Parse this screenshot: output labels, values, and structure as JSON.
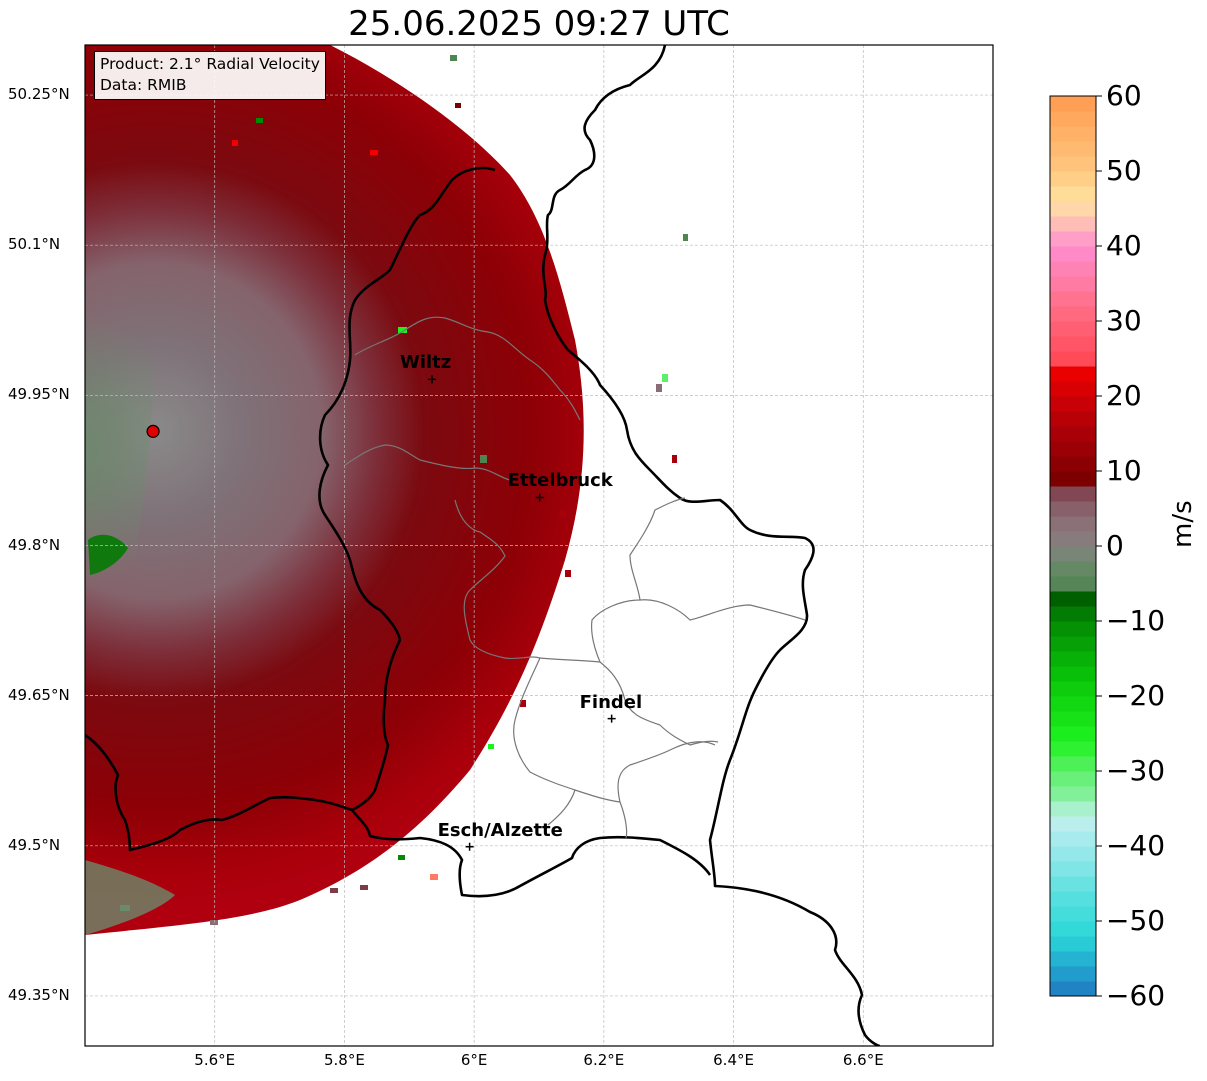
{
  "title": "25.06.2025 09:27 UTC",
  "info_box": {
    "product_line": "Product: 2.1° Radial Velocity",
    "data_line": "Data: RMIB"
  },
  "map": {
    "lon_range": [
      5.4,
      6.8
    ],
    "lat_range": [
      49.3,
      50.3
    ],
    "lat_ticks": [
      {
        "value": 50.25,
        "label": "50.25°N"
      },
      {
        "value": 50.1,
        "label": "50.1°N"
      },
      {
        "value": 49.95,
        "label": "49.95°N"
      },
      {
        "value": 49.8,
        "label": "49.8°N"
      },
      {
        "value": 49.65,
        "label": "49.65°N"
      },
      {
        "value": 49.5,
        "label": "49.5°N"
      },
      {
        "value": 49.35,
        "label": "49.35°N"
      }
    ],
    "lon_ticks": [
      {
        "value": 5.6,
        "label": "5.6°E"
      },
      {
        "value": 5.8,
        "label": "5.8°E"
      },
      {
        "value": 6.0,
        "label": "6°E"
      },
      {
        "value": 6.2,
        "label": "6.2°E"
      },
      {
        "value": 6.4,
        "label": "6.4°E"
      },
      {
        "value": 6.6,
        "label": "6.6°E"
      }
    ],
    "gridlines": true,
    "radar_site": {
      "lon": 5.505,
      "lat": 49.914
    },
    "cities": [
      {
        "name": "Wiltz",
        "lon": 5.935,
        "lat": 49.966
      },
      {
        "name": "Ettelbruck",
        "lon": 6.101,
        "lat": 49.848
      },
      {
        "name": "Findel",
        "lon": 6.212,
        "lat": 49.627
      },
      {
        "name": "Esch/Alzette",
        "lon": 5.993,
        "lat": 49.499
      }
    ]
  },
  "colorbar": {
    "label": "m/s",
    "min": -60,
    "max": 60,
    "ticks": [
      {
        "value": 60,
        "label": "60"
      },
      {
        "value": 50,
        "label": "50"
      },
      {
        "value": 40,
        "label": "40"
      },
      {
        "value": 30,
        "label": "30"
      },
      {
        "value": 20,
        "label": "20"
      },
      {
        "value": 10,
        "label": "10"
      },
      {
        "value": 0,
        "label": "0"
      },
      {
        "value": -10,
        "label": "−10"
      },
      {
        "value": -20,
        "label": "−20"
      },
      {
        "value": -30,
        "label": "−30"
      },
      {
        "value": -40,
        "label": "−40"
      },
      {
        "value": -50,
        "label": "−50"
      },
      {
        "value": -60,
        "label": "−60"
      }
    ],
    "colors": {
      "legend_stops": [
        {
          "v": -60,
          "c": "#1f77c0"
        },
        {
          "v": -56,
          "c": "#22a8d0"
        },
        {
          "v": -52,
          "c": "#2ad7d8"
        },
        {
          "v": -46,
          "c": "#5fe0e0"
        },
        {
          "v": -40,
          "c": "#9fe9ec"
        },
        {
          "v": -36,
          "c": "#c3f1ef"
        },
        {
          "v": -34,
          "c": "#8ef0a8"
        },
        {
          "v": -30,
          "c": "#5cf06a"
        },
        {
          "v": -26,
          "c": "#1ef21e"
        },
        {
          "v": -18,
          "c": "#0ac80a"
        },
        {
          "v": -10,
          "c": "#038a03"
        },
        {
          "v": -7,
          "c": "#006000"
        },
        {
          "v": -6,
          "c": "#4f8550"
        },
        {
          "v": -2,
          "c": "#6b8a6b"
        },
        {
          "v": 0,
          "c": "#878080"
        },
        {
          "v": 4,
          "c": "#8a6c74"
        },
        {
          "v": 8,
          "c": "#7e3c48"
        },
        {
          "v": 9,
          "c": "#7c0000"
        },
        {
          "v": 16,
          "c": "#b00008"
        },
        {
          "v": 24,
          "c": "#f20000"
        },
        {
          "v": 25,
          "c": "#ff4a58"
        },
        {
          "v": 32,
          "c": "#ff6f88"
        },
        {
          "v": 40,
          "c": "#ff8ed0"
        },
        {
          "v": 42,
          "c": "#ffb0c0"
        },
        {
          "v": 46,
          "c": "#ffe4a0"
        },
        {
          "v": 50,
          "c": "#ffc880"
        },
        {
          "v": 60,
          "c": "#ff9a50"
        }
      ]
    }
  }
}
